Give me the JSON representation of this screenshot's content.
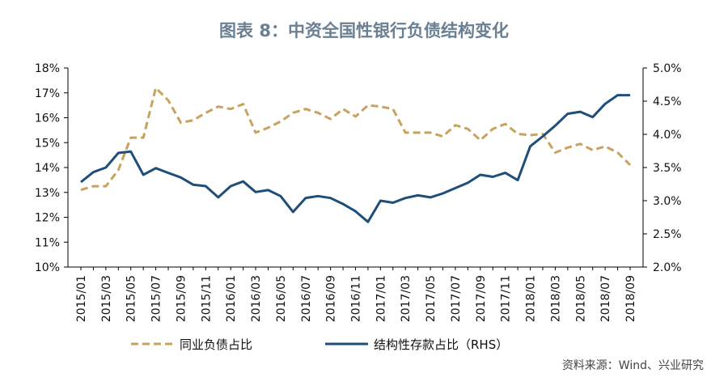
{
  "title": "图表 8：中资全国性银行负债结构变化",
  "source": "资料来源：Wind、兴业研究",
  "colors": {
    "dashed": "#c8a35f",
    "solid": "#1e4e79",
    "axis": "#000000"
  },
  "chart_data": {
    "type": "line",
    "x": [
      "2015/01",
      "2015/02",
      "2015/03",
      "2015/04",
      "2015/05",
      "2015/06",
      "2015/07",
      "2015/08",
      "2015/09",
      "2015/10",
      "2015/11",
      "2015/12",
      "2016/01",
      "2016/02",
      "2016/03",
      "2016/04",
      "2016/05",
      "2016/06",
      "2016/07",
      "2016/08",
      "2016/09",
      "2016/10",
      "2016/11",
      "2016/12",
      "2017/01",
      "2017/02",
      "2017/03",
      "2017/04",
      "2017/05",
      "2017/06",
      "2017/07",
      "2017/08",
      "2017/09",
      "2017/10",
      "2017/11",
      "2017/12",
      "2018/01",
      "2018/02",
      "2018/03",
      "2018/04",
      "2018/05",
      "2018/06",
      "2018/07",
      "2018/08",
      "2018/09"
    ],
    "xticks": [
      "2015/01",
      "2015/03",
      "2015/05",
      "2015/07",
      "2015/09",
      "2015/11",
      "2016/01",
      "2016/03",
      "2016/05",
      "2016/07",
      "2016/09",
      "2016/11",
      "2017/01",
      "2017/03",
      "2017/05",
      "2017/07",
      "2017/09",
      "2017/11",
      "2018/01",
      "2018/03",
      "2018/05",
      "2018/07",
      "2018/09"
    ],
    "left_axis": {
      "ylim": [
        10,
        18
      ],
      "ticks": [
        "10%",
        "11%",
        "12%",
        "13%",
        "14%",
        "15%",
        "16%",
        "17%",
        "18%"
      ]
    },
    "right_axis": {
      "ylim": [
        2.0,
        5.0
      ],
      "ticks": [
        "2.0%",
        "2.5%",
        "3.0%",
        "3.5%",
        "4.0%",
        "4.5%",
        "5.0%"
      ]
    },
    "series": [
      {
        "name": "同业负债占比",
        "axis": "left",
        "style": "dashed",
        "values": [
          13.1,
          13.25,
          13.25,
          13.9,
          15.2,
          15.2,
          17.2,
          16.7,
          15.8,
          15.9,
          16.2,
          16.45,
          16.35,
          16.55,
          15.4,
          15.6,
          15.85,
          16.2,
          16.35,
          16.2,
          15.95,
          16.35,
          16.05,
          16.5,
          16.45,
          16.35,
          15.4,
          15.4,
          15.4,
          15.25,
          15.7,
          15.55,
          15.1,
          15.55,
          15.75,
          15.35,
          15.3,
          15.35,
          14.6,
          14.8,
          14.95,
          14.7,
          14.85,
          14.6,
          14.1
        ]
      },
      {
        "name": "结构性存款占比（RHS）",
        "axis": "right",
        "style": "solid",
        "values": [
          3.28,
          3.43,
          3.5,
          3.72,
          3.74,
          3.39,
          3.49,
          3.42,
          3.35,
          3.24,
          3.22,
          3.05,
          3.22,
          3.29,
          3.13,
          3.16,
          3.07,
          2.83,
          3.04,
          3.07,
          3.04,
          2.95,
          2.84,
          2.68,
          3.0,
          2.97,
          3.04,
          3.08,
          3.05,
          3.11,
          3.19,
          3.27,
          3.39,
          3.36,
          3.42,
          3.31,
          3.82,
          3.97,
          4.13,
          4.31,
          4.34,
          4.26,
          4.46,
          4.59,
          4.59
        ]
      }
    ],
    "legend": {
      "position": "bottom",
      "entries": [
        "同业负债占比",
        "结构性存款占比（RHS）"
      ]
    },
    "title": "图表 8：中资全国性银行负债结构变化"
  }
}
